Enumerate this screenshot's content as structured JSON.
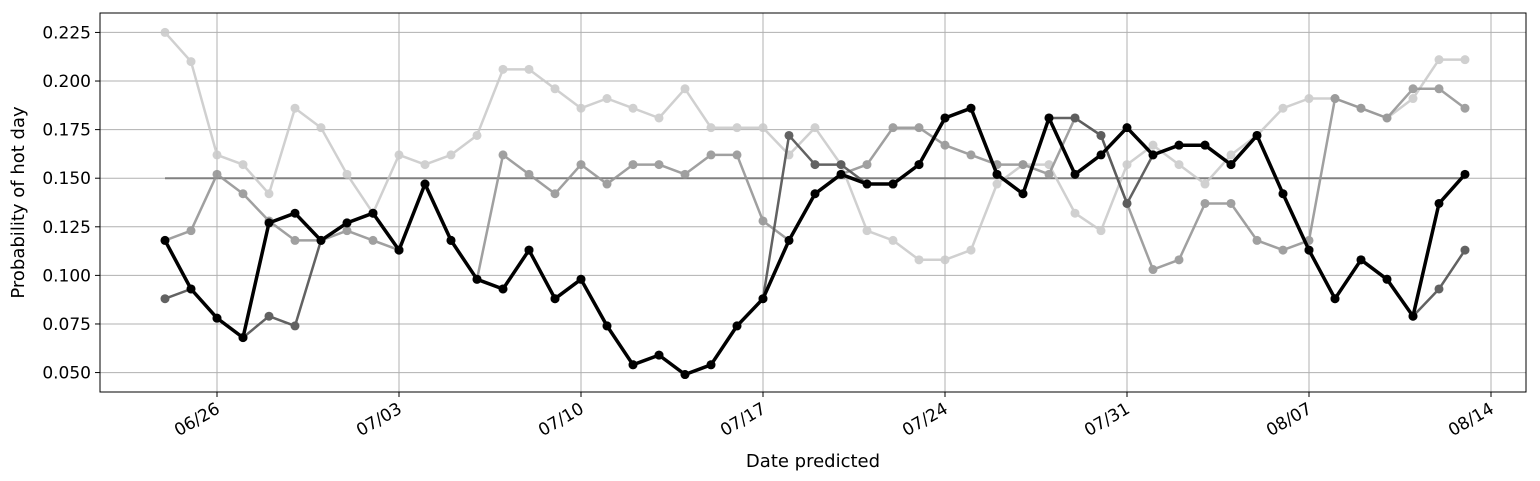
{
  "chart_data": {
    "type": "line",
    "xlabel": "Date predicted",
    "ylabel": "Probability of hot day",
    "ylim": [
      0.04,
      0.235
    ],
    "xlim": [
      "06/22",
      "08/15"
    ],
    "grid": true,
    "xticks": [
      "06/26",
      "07/03",
      "07/10",
      "07/17",
      "07/24",
      "07/31",
      "08/07",
      "08/14"
    ],
    "yticks": [
      "0.050",
      "0.075",
      "0.100",
      "0.125",
      "0.150",
      "0.175",
      "0.200",
      "0.225"
    ],
    "reference_line": {
      "y": 0.15,
      "x_start": "06/24",
      "x_end": "08/13",
      "color": "#808080"
    },
    "x": [
      "06/24",
      "06/25",
      "06/26",
      "06/27",
      "06/28",
      "06/29",
      "06/30",
      "07/01",
      "07/02",
      "07/03",
      "07/04",
      "07/05",
      "07/06",
      "07/07",
      "07/08",
      "07/09",
      "07/10",
      "07/11",
      "07/12",
      "07/13",
      "07/14",
      "07/15",
      "07/16",
      "07/17",
      "07/18",
      "07/19",
      "07/20",
      "07/21",
      "07/22",
      "07/23",
      "07/24",
      "07/25",
      "07/26",
      "07/27",
      "07/28",
      "07/29",
      "07/30",
      "07/31",
      "08/01",
      "08/02",
      "08/03",
      "08/04",
      "08/05",
      "08/06",
      "08/07",
      "08/08",
      "08/09",
      "08/10",
      "08/11",
      "08/12",
      "08/13"
    ],
    "series": [
      {
        "color": "#c8c8c8",
        "stroke_width": 2.5,
        "opacity": 0.85,
        "values": [
          0.225,
          0.21,
          0.162,
          0.157,
          0.142,
          0.186,
          0.176,
          0.152,
          0.132,
          0.162,
          0.157,
          0.162,
          0.172,
          0.206,
          0.206,
          0.196,
          0.186,
          0.191,
          0.186,
          0.181,
          0.196,
          0.176,
          0.176,
          0.176,
          0.162,
          0.176,
          0.157,
          0.123,
          0.118,
          0.108,
          0.108,
          0.113,
          0.147,
          0.157,
          0.157,
          0.132,
          0.123,
          0.157,
          0.167,
          0.157,
          0.147,
          0.162,
          0.172,
          0.186,
          0.191,
          0.191,
          0.186,
          0.181,
          0.191,
          0.211,
          0.211
        ]
      },
      {
        "color": "#969696",
        "stroke_width": 2.5,
        "opacity": 0.9,
        "values": [
          0.118,
          0.123,
          0.152,
          0.142,
          0.128,
          0.118,
          0.118,
          0.123,
          0.118,
          0.113,
          0.147,
          0.118,
          0.098,
          0.162,
          0.152,
          0.142,
          0.157,
          0.147,
          0.157,
          0.157,
          0.152,
          0.162,
          0.162,
          0.128,
          0.118,
          0.142,
          0.152,
          0.157,
          0.176,
          0.176,
          0.167,
          0.162,
          0.157,
          0.157,
          0.152,
          0.181,
          0.172,
          0.137,
          0.103,
          0.108,
          0.137,
          0.137,
          0.118,
          0.113,
          0.118,
          0.191,
          0.186,
          0.181,
          0.196,
          0.196,
          0.186
        ]
      },
      {
        "color": "#5a5a5a",
        "stroke_width": 2.5,
        "opacity": 0.95,
        "values": [
          0.088,
          0.093,
          0.078,
          0.068,
          0.079,
          0.074,
          0.118,
          0.127,
          0.132,
          0.113,
          0.147,
          0.118,
          0.098,
          0.093,
          0.113,
          0.088,
          0.098,
          0.074,
          0.054,
          0.059,
          0.049,
          0.054,
          0.074,
          0.088,
          0.172,
          0.157,
          0.157,
          0.147,
          0.147,
          0.157,
          0.181,
          0.186,
          0.152,
          0.142,
          0.181,
          0.181,
          0.172,
          0.137,
          0.162,
          0.167,
          0.167,
          0.157,
          0.172,
          0.142,
          0.113,
          0.088,
          0.108,
          0.098,
          0.079,
          0.093,
          0.113
        ]
      },
      {
        "color": "#000000",
        "stroke_width": 3.5,
        "opacity": 1,
        "values": [
          0.118,
          0.093,
          0.078,
          0.068,
          0.127,
          0.132,
          0.118,
          0.127,
          0.132,
          0.113,
          0.147,
          0.118,
          0.098,
          0.093,
          0.113,
          0.088,
          0.098,
          0.074,
          0.054,
          0.059,
          0.049,
          0.054,
          0.074,
          0.088,
          0.118,
          0.142,
          0.152,
          0.147,
          0.147,
          0.157,
          0.181,
          0.186,
          0.152,
          0.142,
          0.181,
          0.152,
          0.162,
          0.176,
          0.162,
          0.167,
          0.167,
          0.157,
          0.172,
          0.142,
          0.113,
          0.088,
          0.108,
          0.098,
          0.079,
          0.137,
          0.152
        ]
      }
    ]
  }
}
